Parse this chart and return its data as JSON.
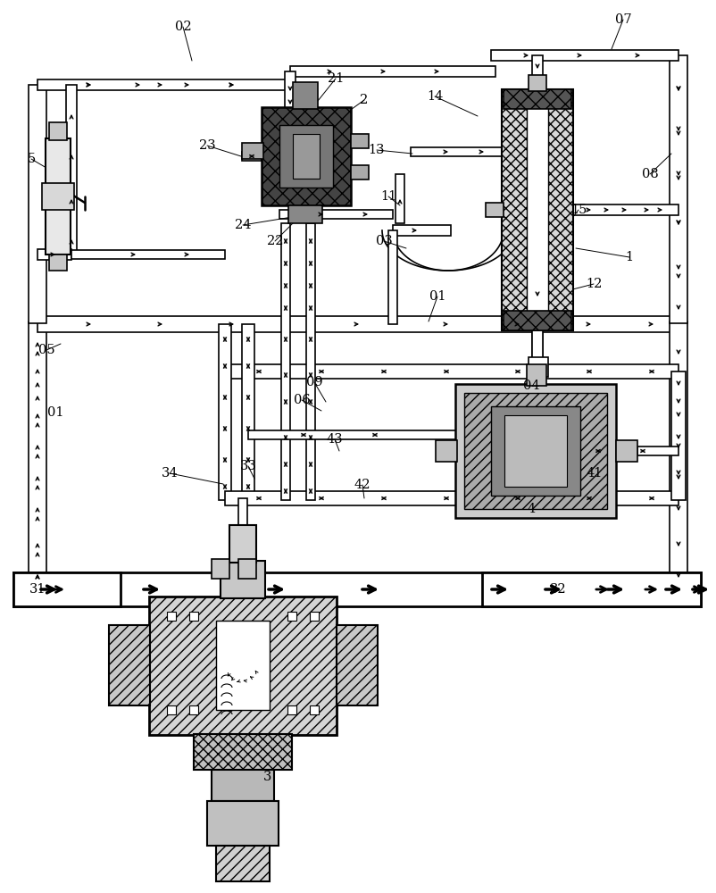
{
  "bg_color": "#ffffff",
  "lc": "#000000",
  "fig_w": 8.03,
  "fig_h": 10.0,
  "dpi": 100
}
